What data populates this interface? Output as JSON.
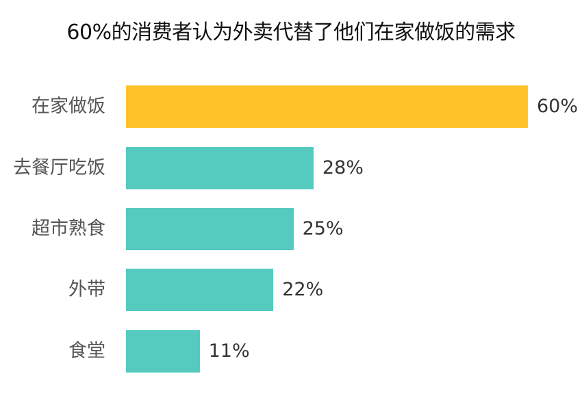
{
  "title": "60%的消费者认为外卖代替了他们在家做饭的需求",
  "colors": {
    "highlight": "#FFC229",
    "default": "#55CBC0"
  },
  "chart_data": {
    "type": "bar",
    "orientation": "horizontal",
    "title": "60%的消费者认为外卖代替了他们在家做饭的需求",
    "categories": [
      "在家做饭",
      "去餐厅吃饭",
      "超市熟食",
      "外带",
      "食堂"
    ],
    "values": [
      60,
      28,
      25,
      22,
      11
    ],
    "value_labels": [
      "60%",
      "28%",
      "25%",
      "22%",
      "11%"
    ],
    "unit": "%",
    "xlabel": "",
    "ylabel": "",
    "grid": false,
    "legend": null,
    "bar_colors": [
      "#FFC229",
      "#55CBC0",
      "#55CBC0",
      "#55CBC0",
      "#55CBC0"
    ]
  }
}
